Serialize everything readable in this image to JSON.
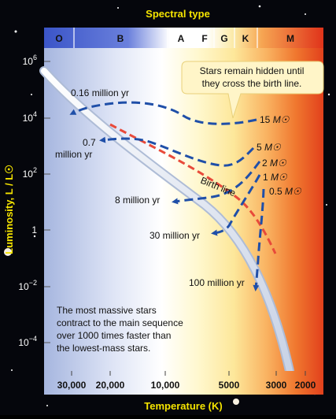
{
  "title": "Spectral type",
  "y_axis_title": "Luminosity, L / L☉",
  "x_axis_title": "Temperature (K)",
  "spectral_types": [
    "O",
    "B",
    "A",
    "F",
    "G",
    "K",
    "M"
  ],
  "y_ticks": [
    {
      "base": "10",
      "exp": "6"
    },
    {
      "base": "10",
      "exp": "4"
    },
    {
      "base": "10",
      "exp": "2"
    },
    {
      "base": "1",
      "exp": ""
    },
    {
      "base": "10",
      "exp": "−2"
    },
    {
      "base": "10",
      "exp": "−4"
    }
  ],
  "x_ticks": [
    "30,000",
    "20,000",
    "10,000",
    "5000",
    "3000",
    "2000"
  ],
  "callout": {
    "line1": "Stars remain hidden until",
    "line2": "they cross the birth line."
  },
  "birth_line_label": "Birth line",
  "track_masses": [
    {
      "value": "15",
      "unit": "M☉"
    },
    {
      "value": "5",
      "unit": "M☉"
    },
    {
      "value": "2",
      "unit": "M☉"
    },
    {
      "value": "1",
      "unit": "M☉"
    },
    {
      "value": "0.5",
      "unit": "M☉"
    }
  ],
  "time_labels": {
    "t1": "0.16 million yr",
    "t2a": "0.7",
    "t2b": "million yr",
    "t3": "8 million yr",
    "t4": "30 million yr",
    "t5": "100 million yr"
  },
  "note": {
    "line1": "The most massive stars",
    "line2": "contract to the main sequence",
    "line3": "over 1000 times faster than",
    "line4": "the lowest-mass stars."
  },
  "colors": {
    "title": "#f5e400",
    "track": "#1f4fa8",
    "birth_line": "#e84a3a",
    "main_sequence": "#dfe6f2"
  }
}
